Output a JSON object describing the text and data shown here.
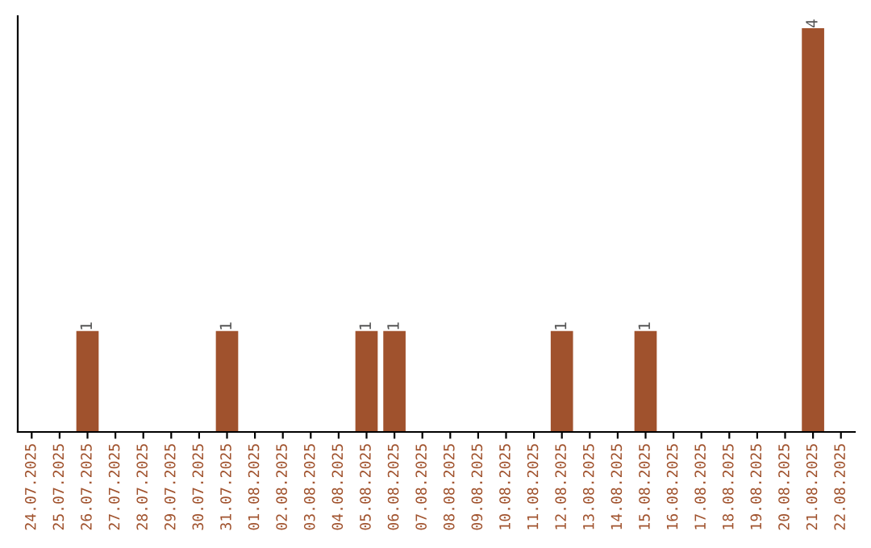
{
  "chart_data": {
    "type": "bar",
    "categories": [
      "24.07.2025",
      "25.07.2025",
      "26.07.2025",
      "27.07.2025",
      "28.07.2025",
      "29.07.2025",
      "30.07.2025",
      "31.07.2025",
      "01.08.2025",
      "02.08.2025",
      "03.08.2025",
      "04.08.2025",
      "05.08.2025",
      "06.08.2025",
      "07.08.2025",
      "08.08.2025",
      "09.08.2025",
      "10.08.2025",
      "11.08.2025",
      "12.08.2025",
      "13.08.2025",
      "14.08.2025",
      "15.08.2025",
      "16.08.2025",
      "17.08.2025",
      "18.08.2025",
      "19.08.2025",
      "20.08.2025",
      "21.08.2025",
      "22.08.2025"
    ],
    "values": [
      0,
      0,
      1,
      0,
      0,
      0,
      0,
      1,
      0,
      0,
      0,
      0,
      1,
      1,
      0,
      0,
      0,
      0,
      0,
      1,
      0,
      0,
      1,
      0,
      0,
      0,
      0,
      0,
      4,
      0
    ],
    "value_labels": [
      null,
      null,
      "1",
      null,
      null,
      null,
      null,
      "1",
      null,
      null,
      null,
      null,
      "1",
      "1",
      null,
      null,
      null,
      null,
      null,
      "1",
      null,
      null,
      "1",
      null,
      null,
      null,
      null,
      null,
      "4",
      null
    ],
    "color": "#a0522d",
    "grid": false,
    "tick_labels": "x"
  }
}
